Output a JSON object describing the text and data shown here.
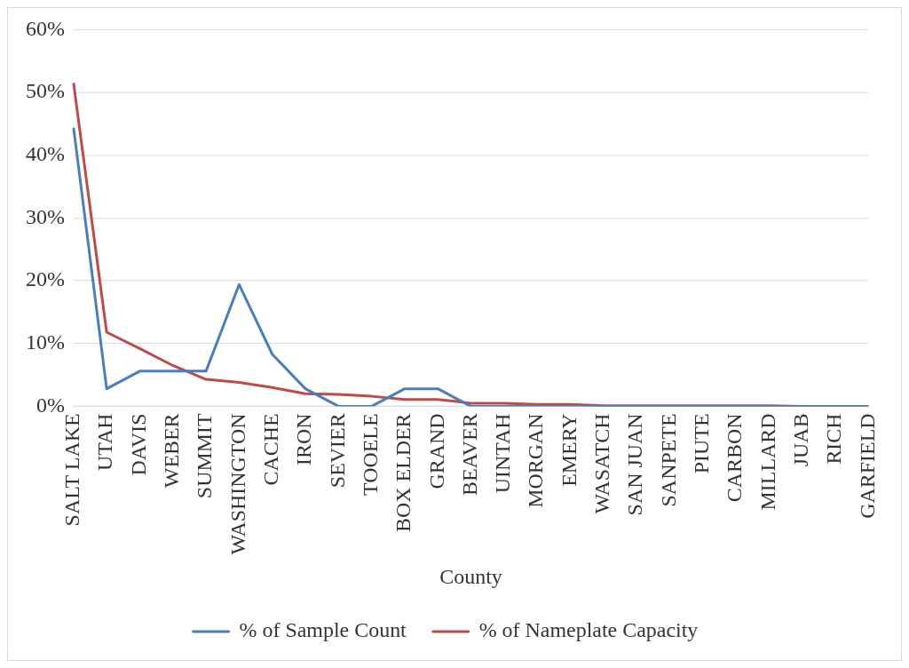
{
  "chart_data": {
    "type": "line",
    "xlabel": "County",
    "categories": [
      "SALT LAKE",
      "UTAH",
      "DAVIS",
      "WEBER",
      "SUMMIT",
      "WASHINGTON",
      "CACHE",
      "IRON",
      "SEVIER",
      "TOOELE",
      "BOX ELDER",
      "GRAND",
      "BEAVER",
      "UINTAH",
      "MORGAN",
      "EMERY",
      "WASATCH",
      "SAN JUAN",
      "SANPETE",
      "PIUTE",
      "CARBON",
      "MILLARD",
      "JUAB",
      "RICH",
      "GARFIELD"
    ],
    "series": [
      {
        "name": "% of Sample Count",
        "color": "#4a7ebb",
        "values": [
          44.4,
          2.8,
          5.6,
          5.6,
          5.6,
          19.4,
          8.3,
          2.8,
          0,
          0,
          2.8,
          2.8,
          0,
          0,
          0,
          0,
          0,
          0,
          0,
          0,
          0,
          0,
          0,
          0,
          0
        ]
      },
      {
        "name": "% of Nameplate Capacity",
        "color": "#be4b48",
        "values": [
          51.5,
          11.8,
          9.2,
          6.5,
          4.3,
          3.8,
          3.0,
          2.0,
          1.9,
          1.6,
          1.1,
          1.1,
          0.5,
          0.5,
          0.3,
          0.3,
          0.1,
          0.1,
          0.1,
          0.1,
          0.1,
          0.1,
          0,
          0,
          0
        ]
      }
    ],
    "ylim": [
      0,
      60
    ],
    "yticks": [
      {
        "value": 0,
        "label": "0%"
      },
      {
        "value": 10,
        "label": "10%"
      },
      {
        "value": 20,
        "label": "20%"
      },
      {
        "value": 30,
        "label": "30%"
      },
      {
        "value": 40,
        "label": "40%"
      },
      {
        "value": 50,
        "label": "50%"
      },
      {
        "value": 60,
        "label": "60%"
      }
    ],
    "grid": "y",
    "legend": "bottom",
    "marker": "none",
    "line_style": "solid"
  }
}
